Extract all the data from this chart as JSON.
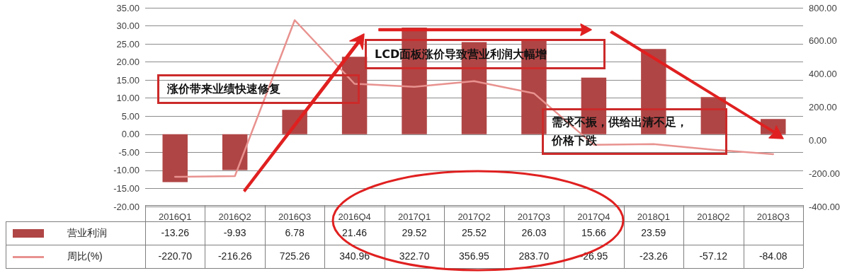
{
  "chart_data": {
    "type": "bar",
    "categories": [
      "2016Q1",
      "2016Q2",
      "2016Q3",
      "2016Q4",
      "2017Q1",
      "2017Q2",
      "2017Q3",
      "2017Q4",
      "2018Q1",
      "2018Q2",
      "2018Q3"
    ],
    "series": [
      {
        "name": "营业利润",
        "color": "#b04545",
        "values": [
          -13.26,
          -9.93,
          6.78,
          21.46,
          29.52,
          25.52,
          26.03,
          15.66,
          23.59,
          10.3,
          4.2
        ],
        "value_labels": [
          "-13.26",
          "-9.93",
          "6.78",
          "21.46",
          "29.52",
          "25.52",
          "26.03",
          "15.66",
          "23.59",
          null,
          null
        ]
      },
      {
        "name": "周比(%)",
        "type": "line",
        "axis": "y2",
        "color": "#e8928f",
        "values": [
          -220.7,
          -216.26,
          725.26,
          340.96,
          322.7,
          356.95,
          283.7,
          -26.95,
          -23.26,
          -57.12,
          -84.08
        ],
        "value_labels": [
          "-220.70",
          "-216.26",
          "725.26",
          "340.96",
          "322.70",
          "356.95",
          "283.70",
          "-26.95",
          "-23.26",
          "-57.12",
          "-84.08"
        ]
      }
    ],
    "ylim": [
      -20,
      35
    ],
    "yticks": [
      {
        "value": -20,
        "label": "-20.00"
      },
      {
        "value": -15,
        "label": "-15.00"
      },
      {
        "value": -10,
        "label": "-10.00"
      },
      {
        "value": -5,
        "label": "-5.00"
      },
      {
        "value": 0,
        "label": "0.00"
      },
      {
        "value": 5,
        "label": "5.00"
      },
      {
        "value": 10,
        "label": "10.00"
      },
      {
        "value": 15,
        "label": "15.00"
      },
      {
        "value": 20,
        "label": "20.00"
      },
      {
        "value": 25,
        "label": "25.00"
      },
      {
        "value": 30,
        "label": "30.00"
      },
      {
        "value": 35,
        "label": "35.00"
      }
    ],
    "y2lim": [
      -400,
      800
    ],
    "y2ticks": [
      {
        "value": -400,
        "label": "-400.00"
      },
      {
        "value": -200,
        "label": "-200.00"
      },
      {
        "value": 0,
        "label": "0.00"
      },
      {
        "value": 200,
        "label": "200.00"
      },
      {
        "value": 400,
        "label": "400.00"
      },
      {
        "value": 600,
        "label": "600.00"
      },
      {
        "value": 800,
        "label": "800.00"
      }
    ],
    "grid": "y",
    "legend": "bottom",
    "marker": "none",
    "line_style": "solid",
    "annotations": [
      "涨价带来业绩快速修复",
      "LCD面板涨价导致营业利润大幅增",
      "需求不振，供给出清不足，价格下跌"
    ]
  }
}
